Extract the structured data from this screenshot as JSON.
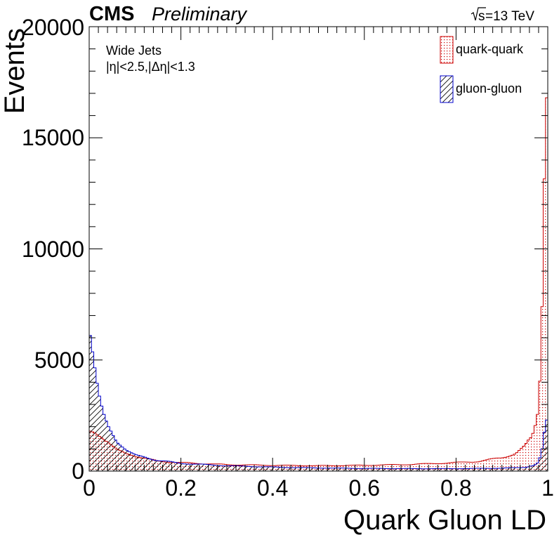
{
  "header": {
    "experiment": "CMS",
    "status": "Preliminary",
    "energy_label": "=13 TeV",
    "energy_prefix": "s"
  },
  "annotations": {
    "line1": "Wide Jets",
    "line2": "|η|<2.5,|Δη|<1.3"
  },
  "colors": {
    "quark": "#cc0000",
    "gluon": "#0000cc",
    "axis": "#000000"
  },
  "chart_data": {
    "type": "histogram",
    "title": "",
    "xlabel": "Quark Gluon LD",
    "ylabel": "Events",
    "xlim": [
      0,
      1
    ],
    "ylim": [
      0,
      20000
    ],
    "x_ticks": [
      "0",
      "0.2",
      "0.4",
      "0.6",
      "0.8",
      "1"
    ],
    "y_ticks": [
      "0",
      "5000",
      "10000",
      "15000",
      "20000"
    ],
    "bins": 200,
    "legend": {
      "position": "top-right",
      "entries": [
        "quark-quark",
        "gluon-gluon"
      ]
    },
    "series": [
      {
        "name": "quark-quark",
        "fill": "dotted",
        "anchors": [
          [
            0.0,
            1100
          ],
          [
            0.0025,
            1800
          ],
          [
            0.01,
            1750
          ],
          [
            0.02,
            1600
          ],
          [
            0.04,
            1300
          ],
          [
            0.06,
            1000
          ],
          [
            0.08,
            800
          ],
          [
            0.1,
            650
          ],
          [
            0.15,
            450
          ],
          [
            0.2,
            380
          ],
          [
            0.3,
            290
          ],
          [
            0.4,
            260
          ],
          [
            0.5,
            240
          ],
          [
            0.6,
            260
          ],
          [
            0.7,
            300
          ],
          [
            0.8,
            380
          ],
          [
            0.85,
            440
          ],
          [
            0.9,
            600
          ],
          [
            0.93,
            800
          ],
          [
            0.95,
            1100
          ],
          [
            0.96,
            1400
          ],
          [
            0.97,
            1800
          ],
          [
            0.98,
            2800
          ],
          [
            0.985,
            5300
          ],
          [
            0.99,
            9500
          ],
          [
            0.995,
            16800
          ]
        ]
      },
      {
        "name": "gluon-gluon",
        "fill": "hatched",
        "anchors": [
          [
            0.0,
            5200
          ],
          [
            0.0025,
            6100
          ],
          [
            0.01,
            5000
          ],
          [
            0.02,
            3600
          ],
          [
            0.03,
            2700
          ],
          [
            0.04,
            2100
          ],
          [
            0.06,
            1300
          ],
          [
            0.08,
            950
          ],
          [
            0.1,
            750
          ],
          [
            0.15,
            480
          ],
          [
            0.2,
            350
          ],
          [
            0.3,
            240
          ],
          [
            0.4,
            180
          ],
          [
            0.5,
            140
          ],
          [
            0.6,
            120
          ],
          [
            0.7,
            110
          ],
          [
            0.8,
            110
          ],
          [
            0.9,
            130
          ],
          [
            0.95,
            170
          ],
          [
            0.97,
            250
          ],
          [
            0.98,
            400
          ],
          [
            0.99,
            1200
          ],
          [
            0.995,
            2300
          ]
        ]
      }
    ]
  }
}
